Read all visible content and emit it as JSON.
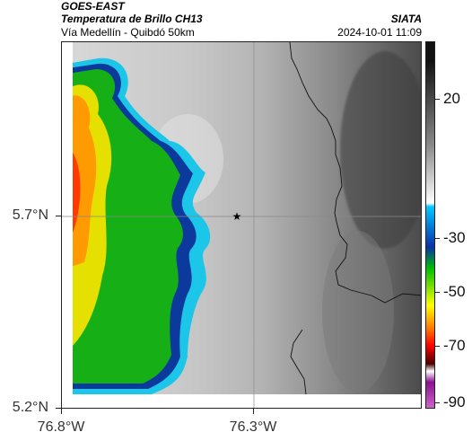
{
  "header": {
    "satellite": "GOES-EAST",
    "product": "Temperatura de Brillo CH13",
    "route": "Vía Medellín - Quibdó 50km",
    "org": "SIATA",
    "datetime": "2024-10-01 11:09"
  },
  "axes": {
    "lat_ticks": [
      "5.7°N",
      "5.2°N"
    ],
    "lon_ticks": [
      "76.8°W",
      "76.3°W"
    ]
  },
  "colorbar": {
    "labels": [
      "20",
      "-30",
      "-50",
      "-70",
      "-90"
    ],
    "colors": [
      "#111111",
      "#ffffff",
      "#00c8ff",
      "#0a2fa8",
      "#00c000",
      "#ffff00",
      "#ff8000",
      "#ff0000",
      "#4a0000",
      "#8a1090",
      "#cc66cc"
    ]
  },
  "map": {
    "marker": "star-icon",
    "colors": {
      "dark_gray": "#5a5a5a",
      "light_gray": "#d4d4d4",
      "cyan": "#19c6e6",
      "blue": "#0a3a9a",
      "green": "#16b016",
      "yellow": "#e6e000",
      "orange": "#ff9a00",
      "red": "#ff3a00",
      "border": "#111111"
    }
  }
}
